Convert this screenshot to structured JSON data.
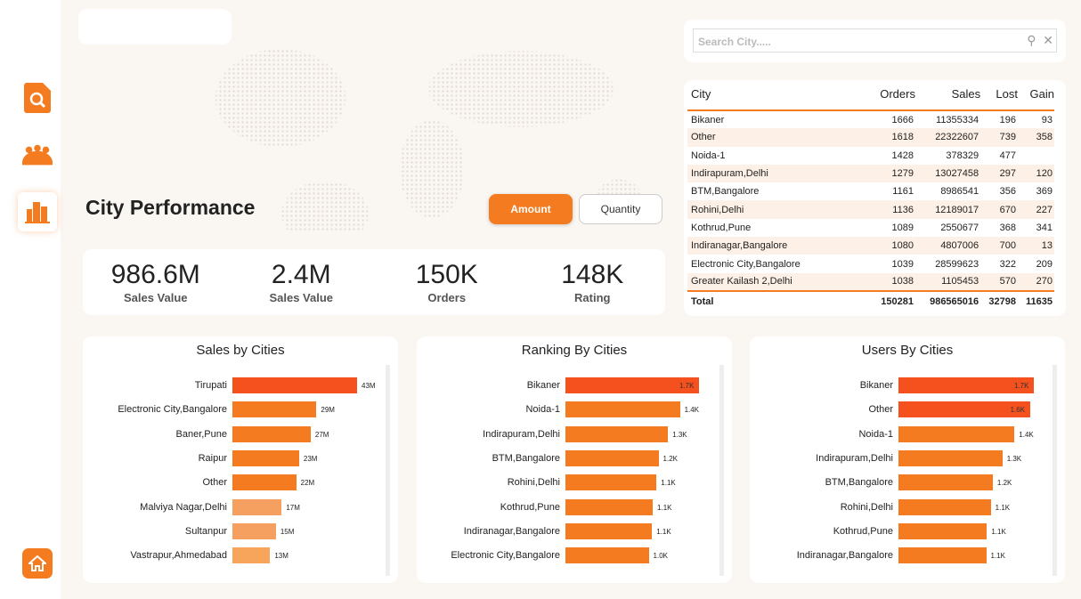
{
  "nav": {
    "items": [
      "report-search",
      "users",
      "city",
      "home"
    ]
  },
  "title": "City Performance",
  "toggle": {
    "amount": "Amount",
    "quantity": "Quantity"
  },
  "kpis": [
    {
      "value": "986.6M",
      "label": "Sales Value"
    },
    {
      "value": "2.4M",
      "label": "Sales Value"
    },
    {
      "value": "150K",
      "label": "Orders"
    },
    {
      "value": "148K",
      "label": "Rating"
    }
  ],
  "search": {
    "placeholder": "Search City....."
  },
  "table": {
    "headers": [
      "City",
      "Orders",
      "Sales",
      "Lost",
      "Gain"
    ],
    "rows": [
      [
        "Bikaner",
        "1666",
        "11355334",
        "196",
        "93"
      ],
      [
        "Other",
        "1618",
        "22322607",
        "739",
        "358"
      ],
      [
        "Noida-1",
        "1428",
        "378329",
        "477",
        ""
      ],
      [
        "Indirapuram,Delhi",
        "1279",
        "13027458",
        "297",
        "120"
      ],
      [
        "BTM,Bangalore",
        "1161",
        "8986541",
        "356",
        "369"
      ],
      [
        "Rohini,Delhi",
        "1136",
        "12189017",
        "670",
        "227"
      ],
      [
        "Kothrud,Pune",
        "1089",
        "2550677",
        "368",
        "341"
      ],
      [
        "Indiranagar,Bangalore",
        "1080",
        "4807006",
        "700",
        "13"
      ],
      [
        "Electronic City,Bangalore",
        "1039",
        "28599623",
        "322",
        "209"
      ],
      [
        "Greater Kailash 2,Delhi",
        "1038",
        "1105453",
        "570",
        "270"
      ]
    ],
    "total": [
      "Total",
      "150281",
      "986565016",
      "32798",
      "11635"
    ]
  },
  "chart_data": [
    {
      "type": "bar",
      "title": "Sales by Cities",
      "categories": [
        "Tirupati",
        "Electronic City,Bangalore",
        "Baner,Pune",
        "Raipur",
        "Other",
        "Malviya Nagar,Delhi",
        "Sultanpur",
        "Vastrapur,Ahmedabad"
      ],
      "values": [
        43,
        29,
        27,
        23,
        22,
        17,
        15,
        13
      ],
      "labels": [
        "43M",
        "29M",
        "27M",
        "23M",
        "22M",
        "17M",
        "15M",
        "13M"
      ],
      "max": 43,
      "colors": [
        "#f4511e",
        "#f47b20",
        "#f47b20",
        "#f47b20",
        "#f47b20",
        "#f5a060",
        "#f5a060",
        "#f6a55a"
      ]
    },
    {
      "type": "bar",
      "title": "Ranking By Cities",
      "categories": [
        "Bikaner",
        "Noida-1",
        "Indirapuram,Delhi",
        "BTM,Bangalore",
        "Rohini,Delhi",
        "Kothrud,Pune",
        "Indiranagar,Bangalore",
        "Electronic City,Bangalore"
      ],
      "values": [
        1666,
        1428,
        1279,
        1161,
        1136,
        1089,
        1080,
        1039
      ],
      "labels": [
        "1.7K",
        "1.4K",
        "1.3K",
        "1.2K",
        "1.1K",
        "1.1K",
        "1.1K",
        "1.0K"
      ],
      "max": 1666,
      "colors": [
        "#f4511e",
        "#f47b20",
        "#f47b20",
        "#f47b20",
        "#f47b20",
        "#f47b20",
        "#f47b20",
        "#f47b20"
      ]
    },
    {
      "type": "bar",
      "title": "Users By Cities",
      "categories": [
        "Bikaner",
        "Other",
        "Noida-1",
        "Indirapuram,Delhi",
        "BTM,Bangalore",
        "Rohini,Delhi",
        "Kothrud,Pune",
        "Indiranagar,Bangalore"
      ],
      "values": [
        1666,
        1618,
        1428,
        1279,
        1161,
        1136,
        1089,
        1080
      ],
      "labels": [
        "1.7K",
        "1.6K",
        "1.4K",
        "1.3K",
        "1.2K",
        "1.1K",
        "1.1K",
        "1.1K"
      ],
      "max": 1666,
      "colors": [
        "#f4511e",
        "#f4511e",
        "#f47b20",
        "#f47b20",
        "#f47b20",
        "#f47b20",
        "#f47b20",
        "#f47b20"
      ]
    }
  ]
}
